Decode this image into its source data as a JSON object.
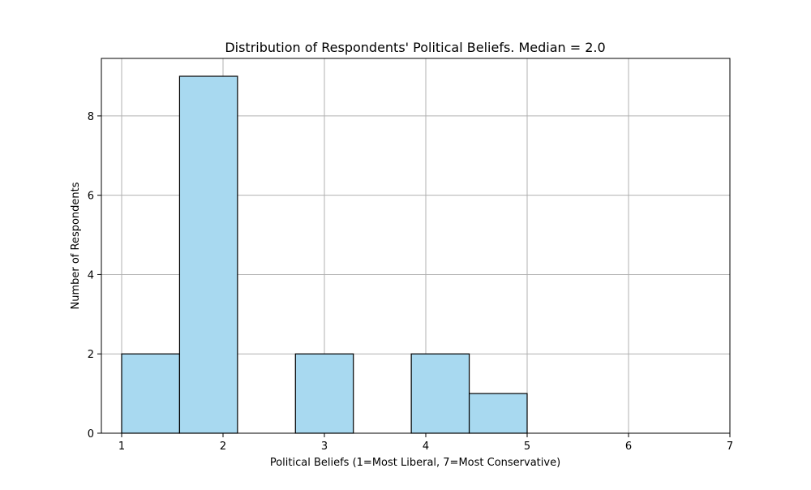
{
  "chart_data": {
    "type": "bar",
    "title": "Distribution of Respondents' Political Beliefs. Median = 2.0",
    "xlabel": "Political Beliefs (1=Most Liberal, 7=Most Conservative)",
    "ylabel": "Number of Respondents",
    "xlim": [
      0.8,
      7.0
    ],
    "ylim": [
      0,
      9.45
    ],
    "xticks": [
      1,
      2,
      3,
      4,
      5,
      6,
      7
    ],
    "yticks": [
      0,
      2,
      4,
      6,
      8
    ],
    "grid": true,
    "bins": [
      {
        "x0": 1.0,
        "x1": 1.5714,
        "value": 2
      },
      {
        "x0": 1.5714,
        "x1": 2.1429,
        "value": 9
      },
      {
        "x0": 2.1429,
        "x1": 2.7143,
        "value": 0
      },
      {
        "x0": 2.7143,
        "x1": 3.2857,
        "value": 2
      },
      {
        "x0": 3.2857,
        "x1": 3.8571,
        "value": 0
      },
      {
        "x0": 3.8571,
        "x1": 4.4286,
        "value": 2
      },
      {
        "x0": 4.4286,
        "x1": 5.0,
        "value": 1
      }
    ],
    "colors": {
      "bar_fill": "#a8d9f0",
      "bar_stroke": "#000000",
      "grid": "#b0b0b0",
      "axis": "#000000"
    }
  }
}
